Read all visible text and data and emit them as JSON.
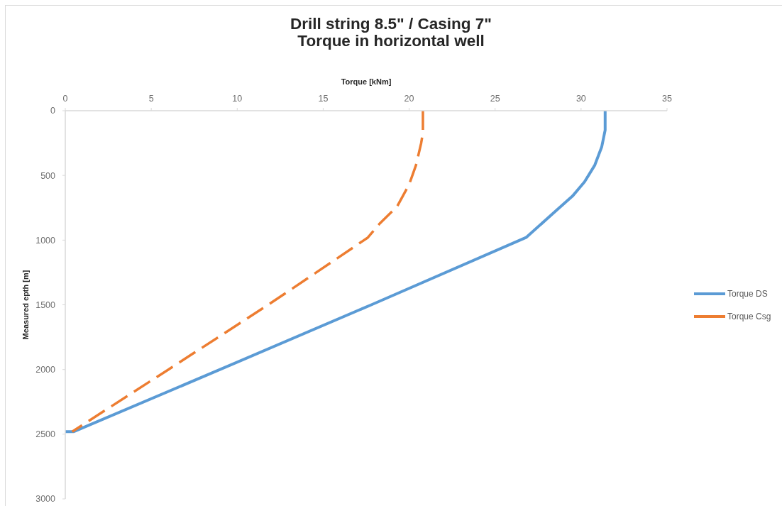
{
  "chart_data": {
    "type": "line",
    "title": "Drill string 8.5\" / Casing 7\"\nTorque in horizontal well",
    "xlabel": "Torque [kNm]",
    "ylabel": "Measured epth [m]",
    "xlim": [
      0,
      35
    ],
    "xticks": [
      0,
      5,
      10,
      15,
      20,
      25,
      30,
      35
    ],
    "ylim": [
      3000,
      0
    ],
    "yticks": [
      0,
      500,
      1000,
      1500,
      2000,
      2500,
      3000
    ],
    "legend": "right",
    "marker": "none",
    "series": [
      {
        "name": "Torque DS",
        "color": "#5b9bd5",
        "line_style": "solid",
        "x": [
          31.4,
          31.4,
          31.2,
          30.8,
          30.2,
          29.5,
          28.4,
          26.8,
          17.8,
          9.0,
          0.5,
          0
        ],
        "values": [
          0,
          150,
          280,
          420,
          550,
          660,
          790,
          980,
          1500,
          2000,
          2480,
          2480
        ]
      },
      {
        "name": "Torque Csg",
        "color": "#ed7d31",
        "line_style": "dashed",
        "x": [
          20.8,
          20.8,
          20.7,
          20.4,
          20.0,
          19.3,
          18.3,
          17.6,
          14.6,
          11.8,
          6.0,
          0.4
        ],
        "values": [
          0,
          170,
          250,
          420,
          570,
          740,
          870,
          980,
          1250,
          1500,
          2000,
          2480
        ]
      }
    ]
  }
}
